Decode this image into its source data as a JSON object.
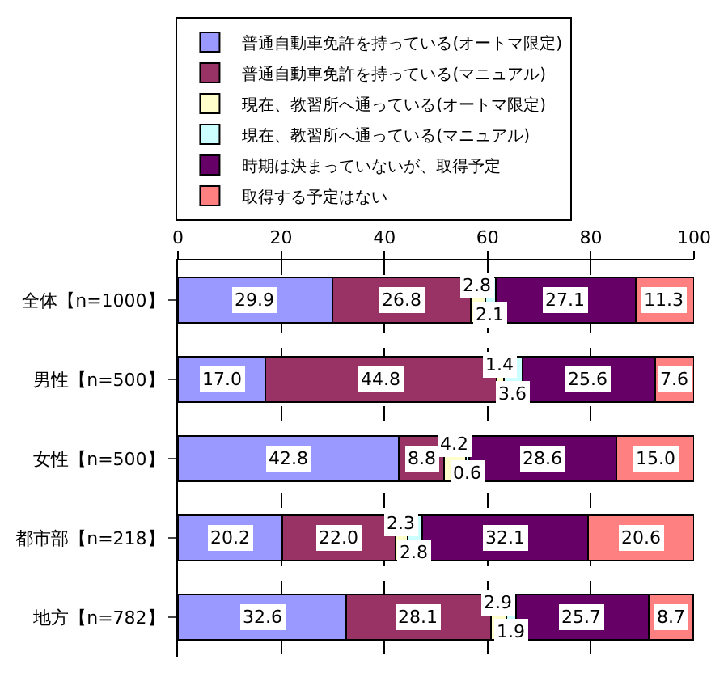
{
  "chart_data": {
    "type": "bar",
    "orientation": "horizontal",
    "stacked": true,
    "grid": "x",
    "legend": "top",
    "categories": [
      "全体【n=1000】",
      "男性【n=500】",
      "女性【n=500】",
      "都市部【n=218】",
      "地方【n=782】"
    ],
    "xlim": [
      0,
      100
    ],
    "xticks": [
      0,
      20,
      40,
      60,
      80,
      100
    ],
    "series": [
      {
        "name": "普通自動車免許を持っている(オートマ限定)",
        "color": "#9999ff",
        "values": [
          29.9,
          17.0,
          42.8,
          20.2,
          32.6
        ],
        "value_labels": [
          "29.9",
          "17.0",
          "42.8",
          "20.2",
          "32.6"
        ]
      },
      {
        "name": "普通自動車免許を持っている(マニュアル)",
        "color": "#993366",
        "values": [
          26.8,
          44.8,
          8.8,
          22.0,
          28.1
        ],
        "value_labels": [
          "26.8",
          "44.8",
          "8.8",
          "22.0",
          "28.1"
        ]
      },
      {
        "name": "現在、教習所へ通っている(オートマ限定)",
        "color": "#ffffcc",
        "values": [
          2.8,
          1.4,
          4.2,
          2.3,
          2.9
        ],
        "value_labels": [
          "2.8",
          "1.4",
          "4.2",
          "2.3",
          "2.9"
        ]
      },
      {
        "name": "現在、教習所へ通っている(マニュアル)",
        "color": "#ccffff",
        "values": [
          2.1,
          3.6,
          0.6,
          2.8,
          1.9
        ],
        "value_labels": [
          "2.1",
          "3.6",
          "0.6",
          "2.8",
          "1.9"
        ]
      },
      {
        "name": "時期は決まっていないが、取得予定",
        "color": "#660066",
        "values": [
          27.1,
          25.6,
          28.6,
          32.1,
          25.7
        ],
        "value_labels": [
          "27.1",
          "25.6",
          "28.6",
          "32.1",
          "25.7"
        ]
      },
      {
        "name": "取得する予定はない",
        "color": "#ff8080",
        "values": [
          11.3,
          7.6,
          15.0,
          20.6,
          8.7
        ],
        "value_labels": [
          "11.3",
          "7.6",
          "15.0",
          "20.6",
          "8.7"
        ]
      }
    ]
  }
}
